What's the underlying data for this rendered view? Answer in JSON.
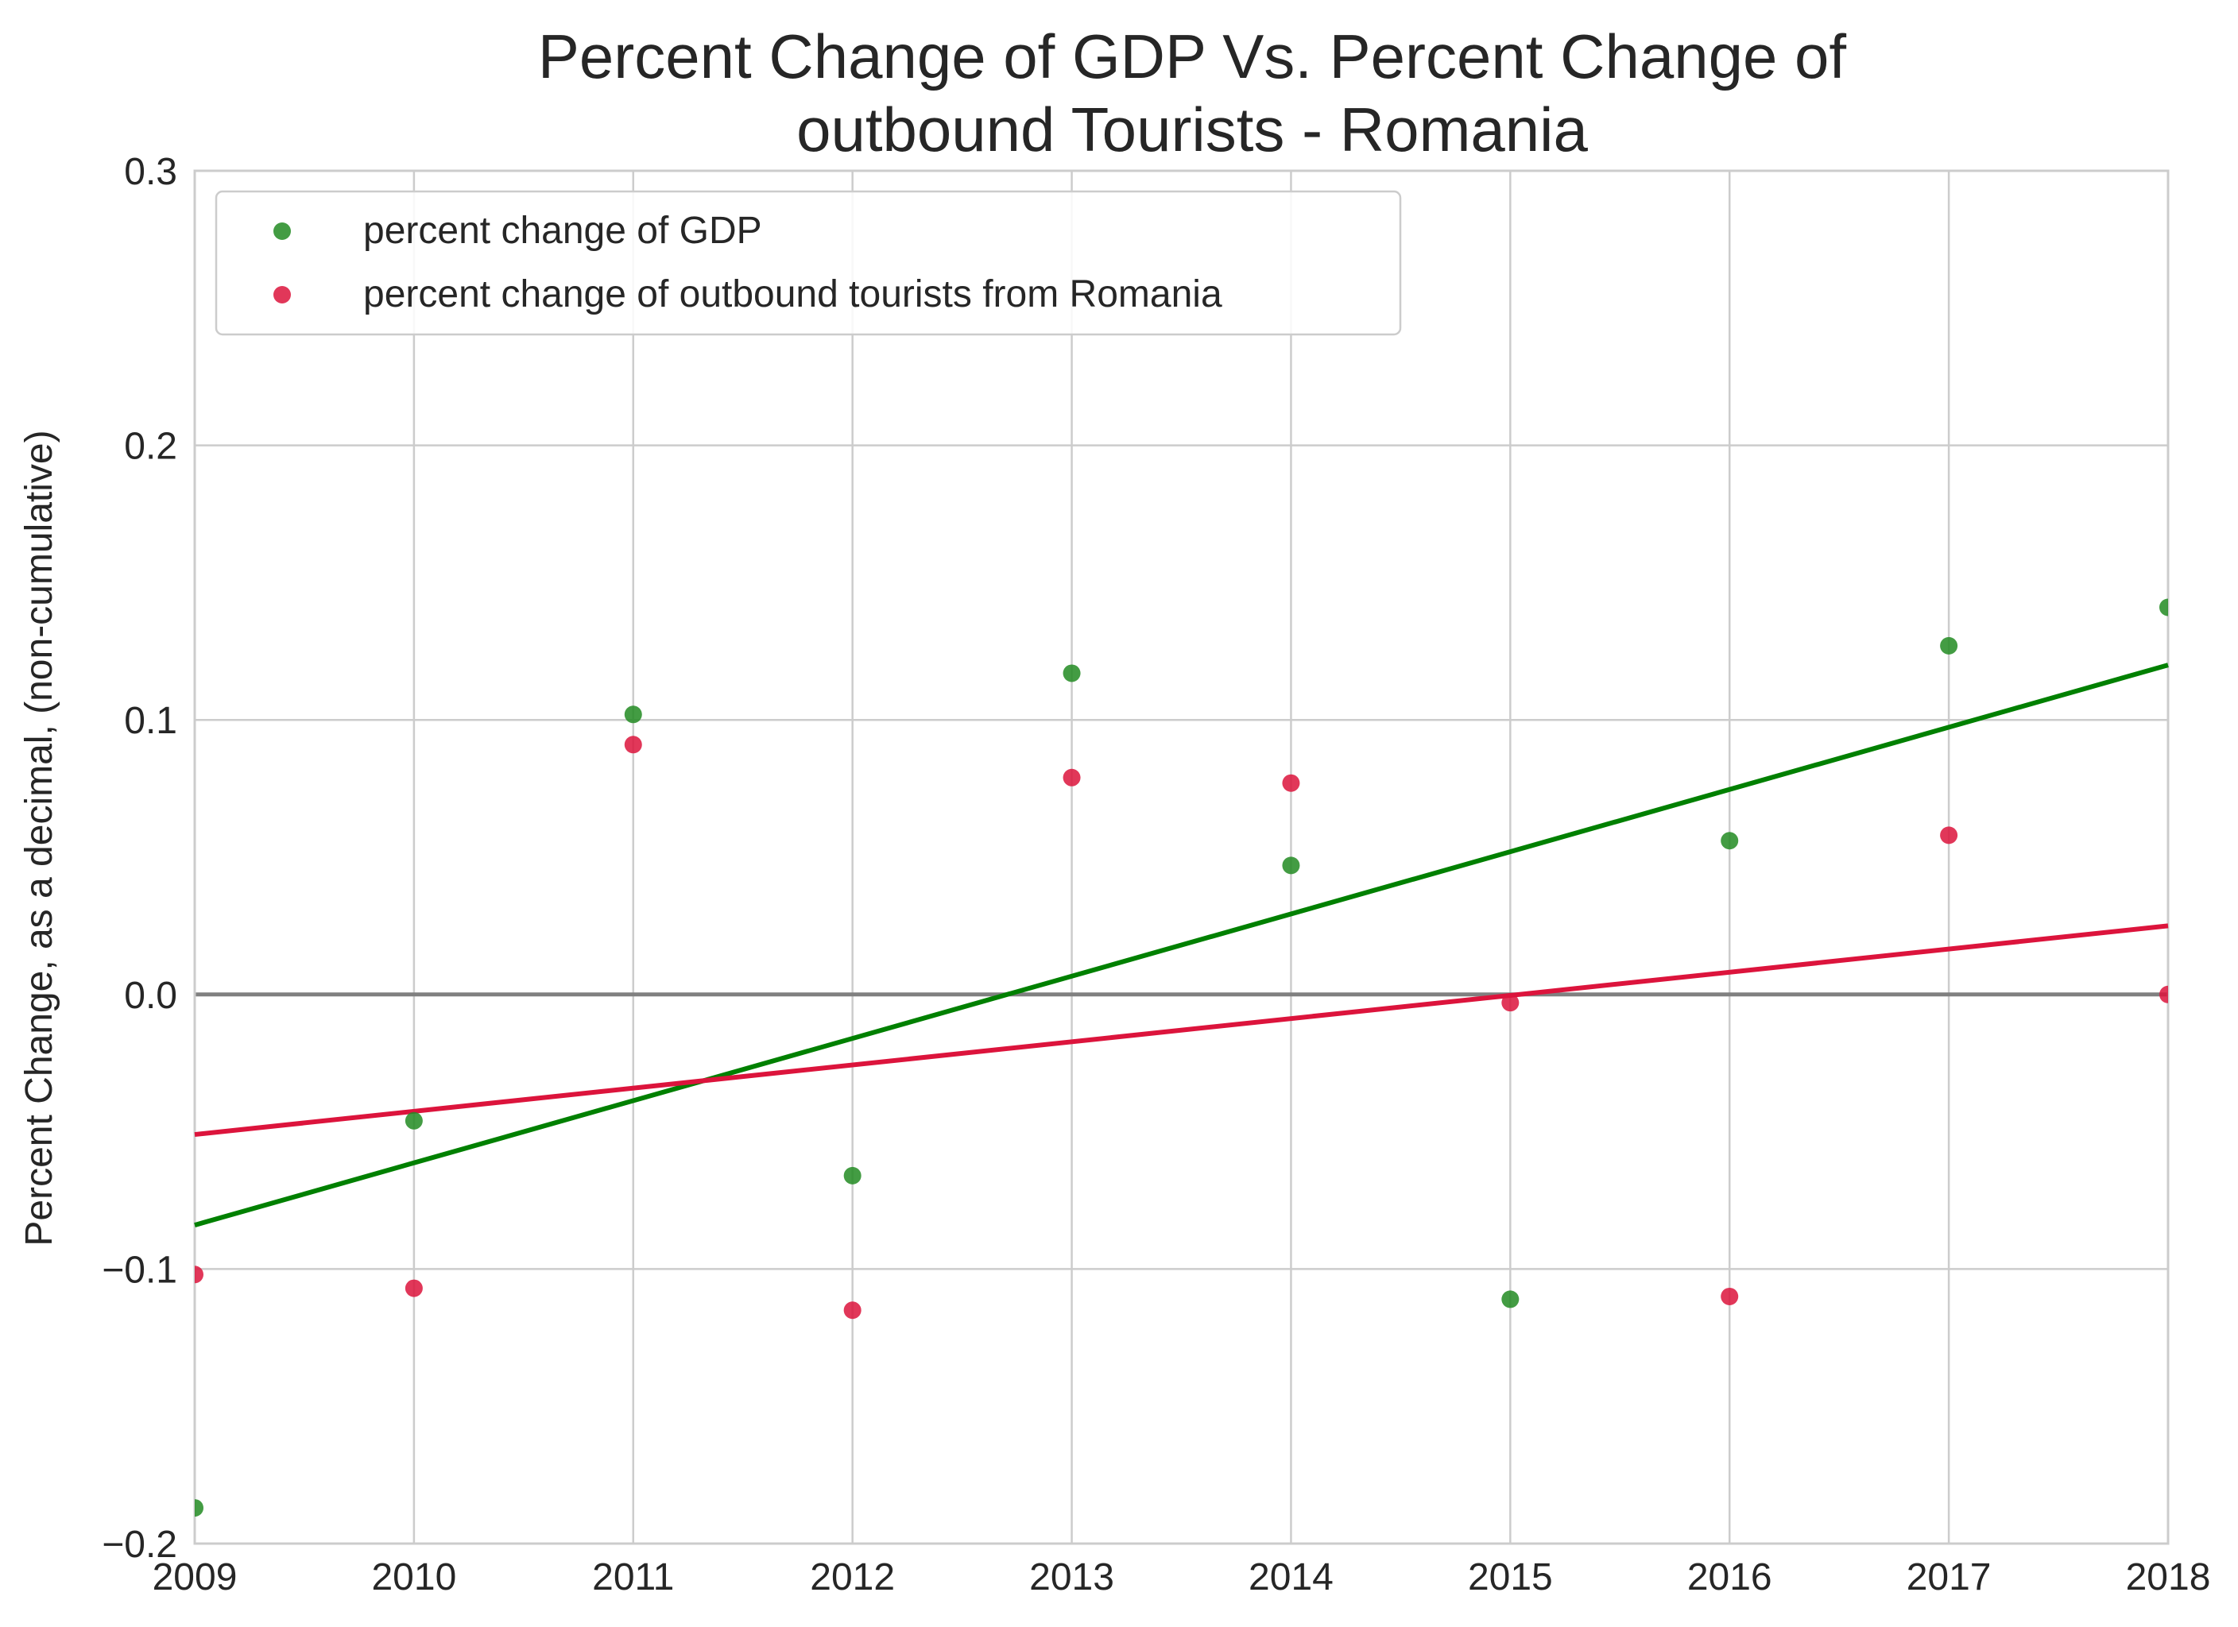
{
  "chart_data": {
    "type": "scatter",
    "title_lines": [
      "Percent Change of GDP Vs. Percent Change of",
      "outbound Tourists - Romania"
    ],
    "xlabel": "",
    "ylabel": "Percent Change, as a decimal, (non-cumulative)",
    "xlim": [
      2009,
      2018
    ],
    "ylim": [
      -0.2,
      0.3
    ],
    "x_ticks": [
      2009,
      2010,
      2011,
      2012,
      2013,
      2014,
      2015,
      2016,
      2017,
      2018
    ],
    "y_ticks": [
      -0.2,
      -0.1,
      0.0,
      0.1,
      0.2,
      0.3
    ],
    "x_tick_labels": [
      "2009",
      "2010",
      "2011",
      "2012",
      "2013",
      "2014",
      "2015",
      "2016",
      "2017",
      "2018"
    ],
    "y_tick_labels": [
      "−0.2",
      "−0.1",
      "0.0",
      "0.1",
      "0.2",
      "0.3"
    ],
    "grid": true,
    "reference_line": {
      "y": 0.0,
      "color": "#808080"
    },
    "legend_position": "top-left",
    "series": [
      {
        "name": "percent change of GDP",
        "color": "#228b22",
        "x": [
          2009,
          2010,
          2011,
          2012,
          2013,
          2014,
          2015,
          2016,
          2017,
          2018
        ],
        "y": [
          -0.187,
          -0.046,
          0.102,
          -0.066,
          0.117,
          0.047,
          -0.111,
          0.056,
          0.127,
          0.141
        ],
        "trend_line": {
          "color": "#008000",
          "start": [
            2009,
            -0.084
          ],
          "end": [
            2018,
            0.12
          ]
        }
      },
      {
        "name": "percent change of outbound tourists from Romania",
        "color": "#dc143c",
        "x": [
          2009,
          2010,
          2011,
          2012,
          2013,
          2014,
          2015,
          2016,
          2017,
          2018
        ],
        "y": [
          -0.102,
          -0.107,
          0.091,
          -0.115,
          0.079,
          0.077,
          -0.003,
          -0.11,
          0.058,
          0.0
        ],
        "trend_line": {
          "color": "#dc143c",
          "start": [
            2009,
            -0.051
          ],
          "end": [
            2018,
            0.025
          ]
        }
      }
    ]
  }
}
